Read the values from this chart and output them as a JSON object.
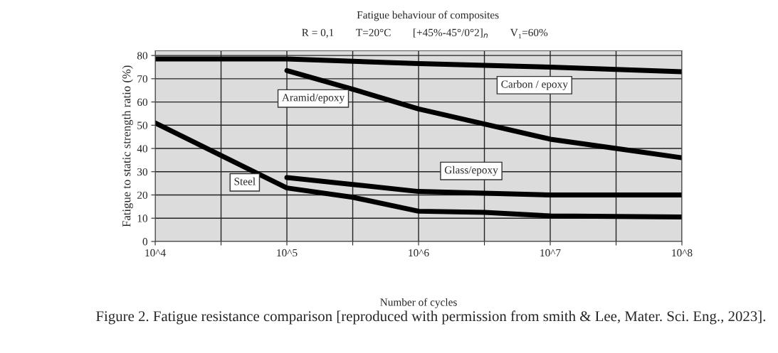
{
  "chart_data": {
    "type": "line",
    "title": "Fatigue behaviour of composites",
    "subtitle": "R = 0,1        T=20°C        [+45%-45°/0°2]$_{n}$        V₁=60%",
    "xlabel": "Number of cycles",
    "ylabel": "Fatigue to static strength ratio (%)",
    "log": "x",
    "xlim": [
      10000,
      100000000
    ],
    "ylim": [
      0,
      82
    ],
    "xticks": [
      {
        "value": 10000,
        "label": "10^4"
      },
      {
        "value": 31623,
        "label": null
      },
      {
        "value": 100000,
        "label": "10^5"
      },
      {
        "value": 316228,
        "label": null
      },
      {
        "value": 1000000,
        "label": "10^6"
      },
      {
        "value": 3162278,
        "label": null
      },
      {
        "value": 10000000,
        "label": "10^7"
      },
      {
        "value": 31622777,
        "label": null
      },
      {
        "value": 100000000,
        "label": "10^8"
      }
    ],
    "yticks": [
      0,
      10,
      20,
      30,
      40,
      50,
      60,
      70,
      80
    ],
    "grid": true,
    "legend": false,
    "line_style": "solid",
    "marker": "none",
    "series": [
      {
        "name": "Carbon / epoxy",
        "color": "#000000",
        "x": [
          10000,
          100000,
          1000000,
          10000000,
          100000000
        ],
        "values": [
          78.5,
          78.5,
          76.5,
          75,
          73
        ]
      },
      {
        "name": "Aramid/epoxy",
        "color": "#000000",
        "x": [
          100000,
          316228,
          1000000,
          3162278,
          10000000,
          31622777,
          100000000
        ],
        "values": [
          73.5,
          65.5,
          57,
          50.5,
          44,
          40,
          36
        ]
      },
      {
        "name": "Glass/epoxy",
        "color": "#000000",
        "x": [
          100000,
          316228,
          1000000,
          10000000,
          100000000
        ],
        "values": [
          27.5,
          24.5,
          21.5,
          20,
          20
        ]
      },
      {
        "name": "Steel",
        "color": "#000000",
        "x": [
          10000,
          31623,
          100000,
          316228,
          1000000,
          3162278,
          10000000,
          100000000
        ],
        "values": [
          51,
          37,
          23,
          19,
          13,
          12.5,
          11,
          10.5
        ]
      }
    ],
    "annotations": [
      "Figure 2. Fatigue resistance comparison [reproduced with permission from smith & Lee, Mater. Sci. Eng., 2023]."
    ]
  }
}
